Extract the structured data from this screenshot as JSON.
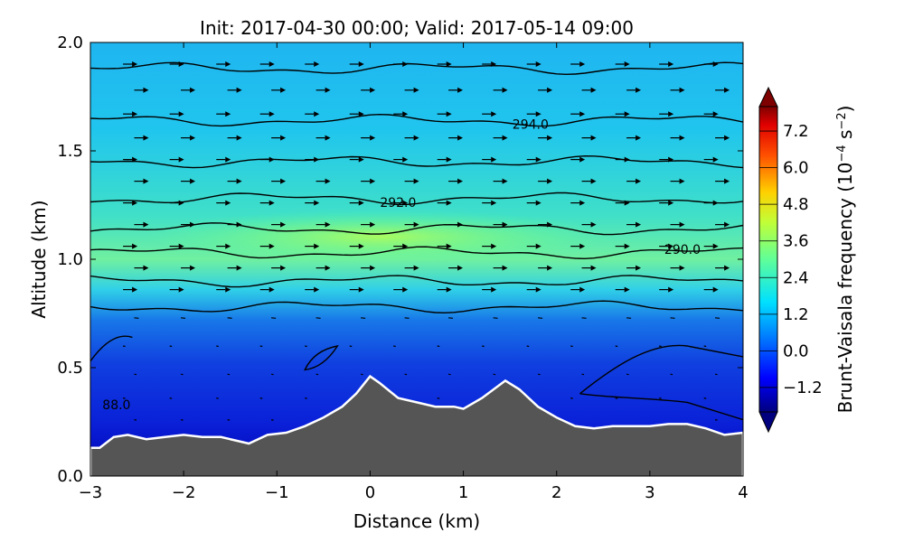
{
  "chart_data": {
    "type": "heatmap",
    "title": "Init: 2017-04-30 00:00; Valid: 2017-05-14 09:00",
    "xlabel": "Distance (km)",
    "ylabel": "Altitude (km)",
    "xlim": [
      -3,
      4
    ],
    "ylim": [
      0,
      2
    ],
    "xticks": [
      "−3",
      "−2",
      "−1",
      "0",
      "1",
      "2",
      "3",
      "4"
    ],
    "xtick_values": [
      -3,
      -2,
      -1,
      0,
      1,
      2,
      3,
      4
    ],
    "yticks": [
      "0.0",
      "0.5",
      "1.0",
      "1.5",
      "2.0"
    ],
    "ytick_values": [
      0,
      0.5,
      1.0,
      1.5,
      2.0
    ],
    "colorbar": {
      "label": "Brunt-Vaisala frequency (10",
      "label_exp": "−4",
      "label_unit": " s",
      "label_unit_exp": "−2",
      "label_close": ")",
      "ticks": [
        "−1.2",
        "0.0",
        "1.2",
        "2.4",
        "3.6",
        "4.8",
        "6.0",
        "7.2"
      ],
      "tick_values": [
        -1.2,
        0.0,
        1.2,
        2.4,
        3.6,
        4.8,
        6.0,
        7.2
      ],
      "range": [
        -2.0,
        8.0
      ],
      "extend": "both",
      "colormap": "jet"
    },
    "terrain": {
      "color": "#555555",
      "outline": "#ffffff",
      "x": [
        -3.0,
        -2.9,
        -2.75,
        -2.6,
        -2.4,
        -2.2,
        -2.0,
        -1.8,
        -1.6,
        -1.4,
        -1.3,
        -1.1,
        -0.9,
        -0.7,
        -0.5,
        -0.3,
        -0.15,
        0.0,
        0.1,
        0.3,
        0.5,
        0.7,
        0.9,
        1.0,
        1.2,
        1.45,
        1.6,
        1.8,
        2.0,
        2.2,
        2.4,
        2.6,
        2.8,
        3.0,
        3.2,
        3.4,
        3.6,
        3.8,
        4.0
      ],
      "y": [
        0.13,
        0.13,
        0.18,
        0.19,
        0.17,
        0.18,
        0.19,
        0.18,
        0.18,
        0.16,
        0.15,
        0.19,
        0.2,
        0.23,
        0.27,
        0.32,
        0.38,
        0.46,
        0.43,
        0.36,
        0.34,
        0.32,
        0.32,
        0.31,
        0.36,
        0.44,
        0.4,
        0.32,
        0.27,
        0.23,
        0.22,
        0.23,
        0.23,
        0.23,
        0.24,
        0.24,
        0.22,
        0.19,
        0.2
      ]
    },
    "contours": [
      {
        "level": "294.0",
        "y_base": 1.88,
        "label_x": 1.72,
        "show_label": false
      },
      {
        "level": "294.0",
        "y_base": 1.64,
        "label_x": 1.72,
        "show_label": true
      },
      {
        "level": "",
        "y_base": 1.45,
        "label_x": 0,
        "show_label": false
      },
      {
        "level": "292.0",
        "y_base": 1.28,
        "label_x": 0.3,
        "show_label": true
      },
      {
        "level": "",
        "y_base": 1.14,
        "label_x": 0,
        "show_label": false
      },
      {
        "level": "290.0",
        "y_base": 1.03,
        "label_x": 3.35,
        "show_label": true
      },
      {
        "level": "",
        "y_base": 0.9,
        "label_x": 0,
        "show_label": false
      },
      {
        "level": "",
        "y_base": 0.78,
        "label_x": 0,
        "show_label": false
      }
    ],
    "partial_contour_label": "88.0",
    "annotations": [
      "294.0",
      "292.0",
      "290.0",
      "88.0"
    ]
  }
}
